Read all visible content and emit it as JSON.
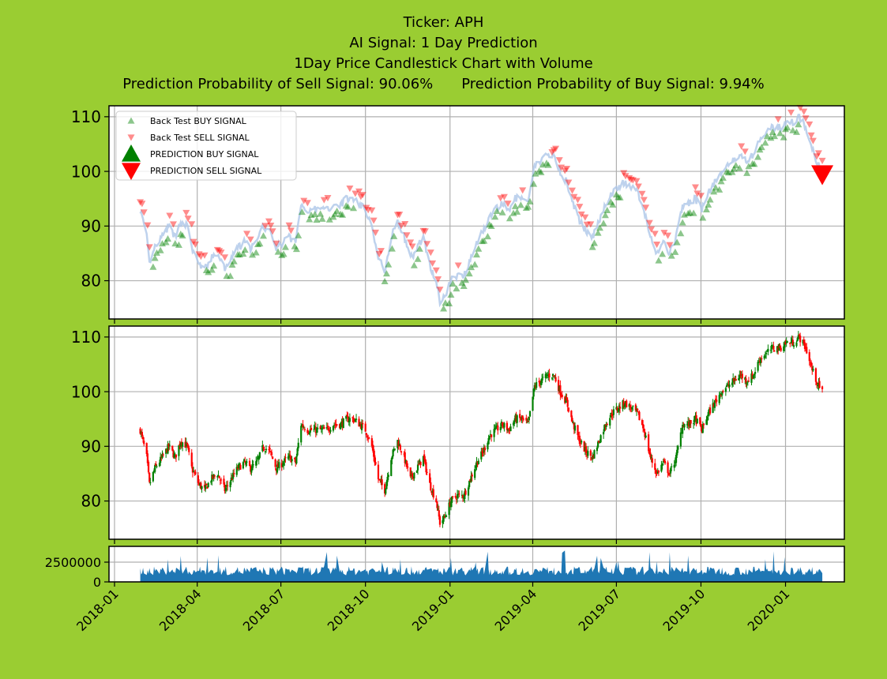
{
  "header": {
    "title_lines": [
      "Ticker: APH",
      "AI Signal: 1 Day Prediction",
      "1Day Price Candlestick Chart with Volume"
    ],
    "sell_prob_text": "Prediction Probability of Sell Signal: 90.06%",
    "buy_prob_text": "Prediction Probability of Buy Signal: 9.94%"
  },
  "colors": {
    "background": "#9acd32",
    "buy": "#008000",
    "sell": "#ff0000",
    "price_line": "#aec7e8",
    "volume": "#1f77b4",
    "grid": "#b0b0b0"
  },
  "legend": {
    "position": "top-left",
    "items": [
      {
        "label": "Back Test BUY SIGNAL",
        "marker": "triangle-up-small",
        "color": "#008000"
      },
      {
        "label": "Back Test SELL SIGNAL",
        "marker": "triangle-down-small",
        "color": "#ff0000"
      },
      {
        "label": "PREDICTION BUY SIGNAL",
        "marker": "triangle-up-large",
        "color": "#008000"
      },
      {
        "label": "PREDICTION SELL SIGNAL",
        "marker": "triangle-down-large",
        "color": "#ff0000"
      }
    ]
  },
  "chart_data": [
    {
      "type": "line",
      "panel": "signals",
      "y_ticks": [
        80,
        90,
        100,
        110
      ],
      "ylim": [
        73,
        112
      ],
      "grid": true,
      "series": [
        {
          "name": "Back Test BUY SIGNAL",
          "note": "green triangle markers along the price path"
        },
        {
          "name": "Back Test SELL SIGNAL",
          "note": "red triangle markers along the price path"
        },
        {
          "name": "PREDICTION BUY SIGNAL"
        },
        {
          "name": "PREDICTION SELL SIGNAL"
        }
      ],
      "prediction_sell_point": {
        "x": "2020-02-10",
        "y": 99.5
      }
    },
    {
      "type": "candlestick",
      "panel": "price",
      "y_ticks": [
        80,
        90,
        100,
        110
      ],
      "ylim": [
        73,
        112
      ],
      "grid": true,
      "x_start": "2018-01-29",
      "x_end": "2020-02-10",
      "price_path": [
        [
          "2018-01-29",
          93
        ],
        [
          "2018-02-05",
          88
        ],
        [
          "2018-02-08",
          83
        ],
        [
          "2018-02-14",
          86
        ],
        [
          "2018-02-22",
          88
        ],
        [
          "2018-03-01",
          90
        ],
        [
          "2018-03-08",
          88
        ],
        [
          "2018-03-14",
          91
        ],
        [
          "2018-03-21",
          90
        ],
        [
          "2018-03-26",
          86
        ],
        [
          "2018-04-03",
          83
        ],
        [
          "2018-04-09",
          82
        ],
        [
          "2018-04-16",
          84
        ],
        [
          "2018-04-23",
          85
        ],
        [
          "2018-05-01",
          82
        ],
        [
          "2018-05-08",
          84
        ],
        [
          "2018-05-15",
          86
        ],
        [
          "2018-05-22",
          87
        ],
        [
          "2018-05-29",
          86
        ],
        [
          "2018-06-05",
          87
        ],
        [
          "2018-06-12",
          90
        ],
        [
          "2018-06-19",
          89
        ],
        [
          "2018-06-26",
          86
        ],
        [
          "2018-07-03",
          87
        ],
        [
          "2018-07-10",
          88
        ],
        [
          "2018-07-17",
          87
        ],
        [
          "2018-07-23",
          94
        ],
        [
          "2018-07-30",
          93
        ],
        [
          "2018-08-06",
          93
        ],
        [
          "2018-08-13",
          93
        ],
        [
          "2018-08-20",
          93
        ],
        [
          "2018-08-27",
          94
        ],
        [
          "2018-09-04",
          94
        ],
        [
          "2018-09-11",
          95
        ],
        [
          "2018-09-18",
          95
        ],
        [
          "2018-09-25",
          94
        ],
        [
          "2018-10-01",
          93
        ],
        [
          "2018-10-08",
          90
        ],
        [
          "2018-10-15",
          84
        ],
        [
          "2018-10-22",
          82
        ],
        [
          "2018-10-29",
          88
        ],
        [
          "2018-11-05",
          91
        ],
        [
          "2018-11-12",
          88
        ],
        [
          "2018-11-19",
          84
        ],
        [
          "2018-11-26",
          86
        ],
        [
          "2018-12-03",
          88
        ],
        [
          "2018-12-10",
          83
        ],
        [
          "2018-12-17",
          80
        ],
        [
          "2018-12-21",
          76
        ],
        [
          "2018-12-26",
          77
        ],
        [
          "2019-01-02",
          80
        ],
        [
          "2019-01-09",
          81
        ],
        [
          "2019-01-16",
          81
        ],
        [
          "2019-01-23",
          84
        ],
        [
          "2019-01-30",
          87
        ],
        [
          "2019-02-06",
          89
        ],
        [
          "2019-02-13",
          92
        ],
        [
          "2019-02-20",
          93
        ],
        [
          "2019-02-27",
          94
        ],
        [
          "2019-03-06",
          93
        ],
        [
          "2019-03-13",
          95
        ],
        [
          "2019-03-20",
          95
        ],
        [
          "2019-03-27",
          94
        ],
        [
          "2019-04-03",
          101
        ],
        [
          "2019-04-10",
          102
        ],
        [
          "2019-04-17",
          103
        ],
        [
          "2019-04-24",
          103
        ],
        [
          "2019-05-01",
          100
        ],
        [
          "2019-05-08",
          98
        ],
        [
          "2019-05-15",
          94
        ],
        [
          "2019-05-22",
          91
        ],
        [
          "2019-05-29",
          89
        ],
        [
          "2019-06-05",
          88
        ],
        [
          "2019-06-12",
          91
        ],
        [
          "2019-06-19",
          94
        ],
        [
          "2019-06-26",
          96
        ],
        [
          "2019-07-03",
          97
        ],
        [
          "2019-07-10",
          98
        ],
        [
          "2019-07-17",
          97
        ],
        [
          "2019-07-24",
          96
        ],
        [
          "2019-07-31",
          93
        ],
        [
          "2019-08-07",
          88
        ],
        [
          "2019-08-14",
          85
        ],
        [
          "2019-08-21",
          87
        ],
        [
          "2019-08-28",
          85
        ],
        [
          "2019-09-04",
          88
        ],
        [
          "2019-09-11",
          94
        ],
        [
          "2019-09-18",
          94
        ],
        [
          "2019-09-25",
          95
        ],
        [
          "2019-10-02",
          93
        ],
        [
          "2019-10-09",
          96
        ],
        [
          "2019-10-16",
          98
        ],
        [
          "2019-10-23",
          100
        ],
        [
          "2019-10-30",
          101
        ],
        [
          "2019-11-06",
          102
        ],
        [
          "2019-11-13",
          103
        ],
        [
          "2019-11-20",
          102
        ],
        [
          "2019-11-27",
          103
        ],
        [
          "2019-12-04",
          106
        ],
        [
          "2019-12-11",
          107
        ],
        [
          "2019-12-18",
          108
        ],
        [
          "2019-12-26",
          108
        ],
        [
          "2020-01-02",
          109
        ],
        [
          "2020-01-09",
          109
        ],
        [
          "2020-01-16",
          110
        ],
        [
          "2020-01-23",
          108
        ],
        [
          "2020-01-30",
          104
        ],
        [
          "2020-02-06",
          101
        ],
        [
          "2020-02-10",
          100
        ]
      ]
    },
    {
      "type": "area",
      "panel": "volume",
      "y_ticks": [
        0,
        2500000
      ],
      "ylim": [
        0,
        4500000
      ],
      "typical_volume": 1400000,
      "peak_volume": 4000000
    }
  ],
  "x_axis": {
    "ticks": [
      "2018-01",
      "2018-04",
      "2018-07",
      "2018-10",
      "2019-01",
      "2019-04",
      "2019-07",
      "2019-10",
      "2020-01"
    ],
    "tick_dates": [
      "2018-01-01",
      "2018-04-01",
      "2018-07-01",
      "2018-10-01",
      "2019-01-01",
      "2019-04-01",
      "2019-07-01",
      "2019-10-01",
      "2020-01-01"
    ],
    "range": [
      "2017-12-26",
      "2020-03-05"
    ],
    "rotation_deg": 45
  }
}
